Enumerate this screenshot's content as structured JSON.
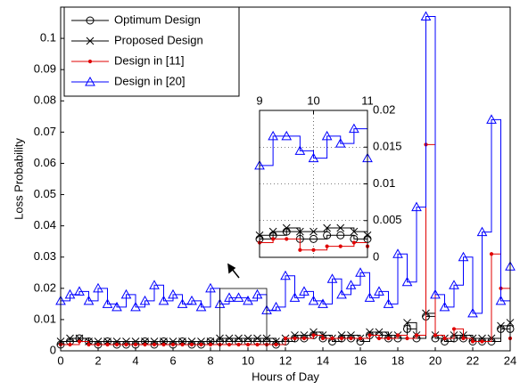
{
  "chart_data": [
    {
      "type": "stairs",
      "xlabel": "Hours of Day",
      "ylabel": "Loss Probability",
      "xlim": [
        0,
        24
      ],
      "ylim": [
        0,
        0.11
      ],
      "xticks": [
        0,
        2,
        4,
        6,
        8,
        10,
        12,
        14,
        16,
        18,
        20,
        22,
        24
      ],
      "yticks": [
        0,
        0.01,
        0.02,
        0.03,
        0.04,
        0.05,
        0.06,
        0.07,
        0.08,
        0.09,
        0.1
      ],
      "grid": false,
      "legend": "northwest",
      "x": [
        0,
        0.5,
        1,
        1.5,
        2,
        2.5,
        3,
        3.5,
        4,
        4.5,
        5,
        5.5,
        6,
        6.5,
        7,
        7.5,
        8,
        8.5,
        9,
        9.5,
        10,
        10.5,
        11,
        11.5,
        12,
        12.5,
        13,
        13.5,
        14,
        14.5,
        15,
        15.5,
        16,
        16.5,
        17,
        17.5,
        18,
        18.5,
        19,
        19.5,
        20,
        20.5,
        21,
        21.5,
        22,
        22.5,
        23,
        23.5,
        24
      ],
      "series": [
        {
          "name": "Optimum Design",
          "color": "#000000",
          "marker": "circle",
          "values": [
            0.002,
            0.003,
            0.004,
            0.003,
            0.002,
            0.003,
            0.002,
            0.002,
            0.002,
            0.003,
            0.002,
            0.003,
            0.002,
            0.003,
            0.002,
            0.002,
            0.003,
            0.003,
            0.003,
            0.003,
            0.003,
            0.003,
            0.003,
            0.002,
            0.003,
            0.004,
            0.004,
            0.005,
            0.004,
            0.003,
            0.004,
            0.004,
            0.003,
            0.005,
            0.005,
            0.004,
            0.004,
            0.007,
            0.004,
            0.011,
            0.004,
            0.003,
            0.004,
            0.004,
            0.003,
            0.003,
            0.003,
            0.007,
            0.007
          ]
        },
        {
          "name": "Proposed Design",
          "color": "#000000",
          "marker": "x",
          "values": [
            0.003,
            0.004,
            0.004,
            0.003,
            0.003,
            0.003,
            0.003,
            0.003,
            0.003,
            0.003,
            0.003,
            0.003,
            0.003,
            0.003,
            0.003,
            0.003,
            0.003,
            0.004,
            0.004,
            0.004,
            0.004,
            0.004,
            0.004,
            0.003,
            0.004,
            0.005,
            0.005,
            0.006,
            0.005,
            0.004,
            0.005,
            0.005,
            0.004,
            0.006,
            0.006,
            0.005,
            0.005,
            0.009,
            0.005,
            0.012,
            0.005,
            0.004,
            0.005,
            0.005,
            0.004,
            0.004,
            0.004,
            0.008,
            0.009
          ]
        },
        {
          "name": "Design in [11]",
          "color": "#e00000",
          "marker": "dot",
          "values": [
            0.002,
            0.002,
            0.003,
            0.002,
            0.002,
            0.002,
            0.002,
            0.002,
            0.002,
            0.002,
            0.002,
            0.002,
            0.002,
            0.002,
            0.002,
            0.002,
            0.002,
            0.002,
            0.002,
            0.002,
            0.002,
            0.002,
            0.002,
            0.002,
            0.004,
            0.004,
            0.004,
            0.005,
            0.004,
            0.004,
            0.004,
            0.004,
            0.004,
            0.005,
            0.004,
            0.004,
            0.005,
            0.004,
            0.005,
            0.066,
            0.005,
            0.004,
            0.007,
            0.004,
            0.003,
            0.003,
            0.031,
            0.02,
            0.004
          ]
        },
        {
          "name": "Design in [20]",
          "color": "#0000ff",
          "marker": "triangle",
          "values": [
            0.016,
            0.018,
            0.019,
            0.016,
            0.02,
            0.015,
            0.014,
            0.018,
            0.014,
            0.016,
            0.021,
            0.016,
            0.018,
            0.015,
            0.016,
            0.014,
            0.02,
            0.015,
            0.017,
            0.017,
            0.016,
            0.018,
            0.013,
            0.014,
            0.024,
            0.017,
            0.019,
            0.016,
            0.015,
            0.023,
            0.018,
            0.021,
            0.025,
            0.017,
            0.019,
            0.015,
            0.031,
            0.022,
            0.046,
            0.107,
            0.018,
            0.014,
            0.021,
            0.03,
            0.012,
            0.038,
            0.074,
            0.016,
            0.027
          ]
        }
      ]
    },
    {
      "type": "stairs",
      "xlim": [
        9,
        11
      ],
      "ylim": [
        0,
        0.02
      ],
      "xticks": [
        9,
        10,
        11
      ],
      "yticks": [
        0,
        0.005,
        0.01,
        0.015,
        0.02
      ],
      "grid": true,
      "x": [
        9,
        9.25,
        9.5,
        9.75,
        10,
        10.25,
        10.5,
        10.75,
        11
      ],
      "series": [
        {
          "color": "#000000",
          "marker": "circle",
          "values": [
            0.0025,
            0.003,
            0.0035,
            0.0025,
            0.0025,
            0.003,
            0.003,
            0.0025,
            0.0025
          ]
        },
        {
          "color": "#000000",
          "marker": "x",
          "values": [
            0.003,
            0.0035,
            0.004,
            0.0035,
            0.0035,
            0.004,
            0.004,
            0.0035,
            0.003
          ]
        },
        {
          "color": "#e00000",
          "marker": "dot",
          "values": [
            0.002,
            0.0025,
            0.0025,
            0.001,
            0.001,
            0.0015,
            0.0015,
            0.002,
            0.0015
          ]
        },
        {
          "color": "#0000ff",
          "marker": "triangle",
          "values": [
            0.0125,
            0.0165,
            0.0165,
            0.0145,
            0.0135,
            0.0165,
            0.0155,
            0.0175,
            0.0135
          ]
        }
      ]
    }
  ]
}
